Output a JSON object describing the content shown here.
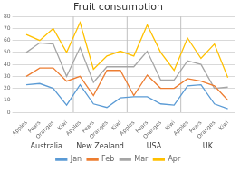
{
  "chart_data": {
    "type": "line",
    "title": "Fruit consumption",
    "categories": [
      "Apples",
      "Pears",
      "Oranges",
      "Kiwi",
      "Apples",
      "Pears",
      "Oranges",
      "Kiwi",
      "Apples",
      "Pears",
      "Oranges",
      "Kiwi",
      "Apples",
      "Pears",
      "Oranges",
      "Kiwi"
    ],
    "groups": [
      "Australia",
      "New Zealand",
      "USA",
      "UK"
    ],
    "series": [
      {
        "name": "Jan",
        "color": "#5b9bd5",
        "values": [
          23,
          24,
          20,
          6,
          23,
          7,
          4,
          12,
          13,
          13,
          7,
          6,
          22,
          23,
          7,
          3
        ]
      },
      {
        "name": "Feb",
        "color": "#ed7d31",
        "values": [
          30,
          37,
          37,
          26,
          30,
          14,
          35,
          35,
          14,
          31,
          20,
          20,
          28,
          26,
          22,
          10
        ]
      },
      {
        "name": "Mar",
        "color": "#a5a5a5",
        "values": [
          50,
          58,
          57,
          30,
          54,
          25,
          38,
          38,
          38,
          51,
          27,
          27,
          43,
          40,
          20,
          21
        ]
      },
      {
        "name": "Apr",
        "color": "#ffc000",
        "values": [
          65,
          60,
          70,
          50,
          75,
          36,
          47,
          51,
          47,
          73,
          50,
          35,
          62,
          45,
          57,
          29
        ]
      }
    ],
    "ylim": [
      0,
      80
    ],
    "yticks": [
      0,
      10,
      20,
      30,
      40,
      50,
      60,
      70,
      80
    ],
    "grid": true,
    "legend": "bottom"
  }
}
